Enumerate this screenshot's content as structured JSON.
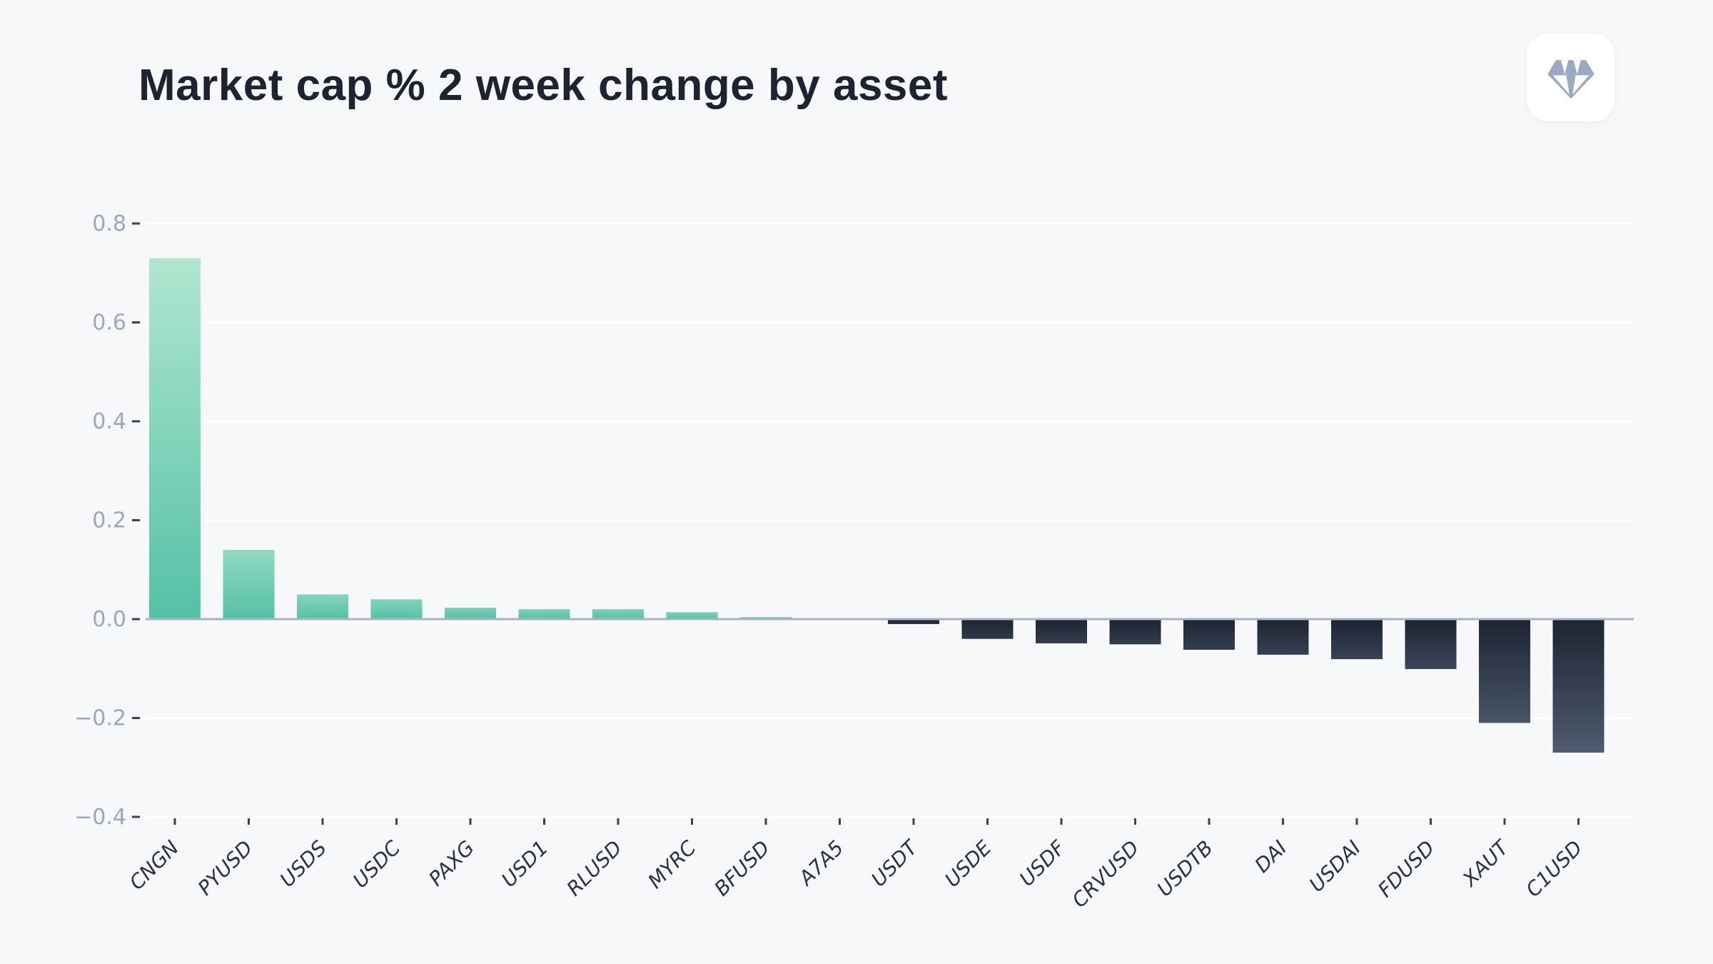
{
  "header": {
    "title": "Market cap % 2 week change by asset",
    "logo_icon": "gem-icon"
  },
  "chart_data": {
    "type": "bar",
    "title": "Market cap % 2 week change by asset",
    "xlabel": "",
    "ylabel": "",
    "categories": [
      "CNGN",
      "PYUSD",
      "USDS",
      "USDC",
      "PAXG",
      "USD1",
      "RLUSD",
      "MYRC",
      "BFUSD",
      "A7A5",
      "USDT",
      "USDE",
      "USDF",
      "CRVUSD",
      "USDTB",
      "DAI",
      "USDAI",
      "FDUSD",
      "XAUT",
      "C1USD"
    ],
    "values": [
      0.73,
      0.14,
      0.05,
      0.04,
      0.023,
      0.02,
      0.02,
      0.014,
      0.004,
      0.001,
      -0.01,
      -0.04,
      -0.049,
      -0.051,
      -0.062,
      -0.072,
      -0.081,
      -0.101,
      -0.21,
      -0.27
    ],
    "ylim": [
      -0.4,
      0.88
    ],
    "yticks": [
      0.8,
      0.6,
      0.4,
      0.2,
      0.0,
      -0.2,
      -0.4
    ],
    "ytick_labels": [
      "0.8",
      "0.6",
      "0.4",
      "0.2",
      "0.0",
      "−0.2",
      "−0.4"
    ],
    "grid": true,
    "legend": "none",
    "bar_orientation": "vertical",
    "xlabel_rotation_deg": 45,
    "colors": {
      "background": "#f6f8fa",
      "title": "#1d2330",
      "positive_top": "#b1e6d0",
      "positive_bottom": "#54c1a6",
      "negative_top": "#1d2433",
      "negative_bottom": "#4f5b6f",
      "zero_line": "#a9b2c2",
      "grid_line": "#fdfefe",
      "ytick_label": "#9aa7bd",
      "xtick_label": "#2b3240",
      "tick_mark": "#3c4350",
      "gem_icon": "#9aaac2",
      "logo_bg": "#ffffff"
    }
  }
}
